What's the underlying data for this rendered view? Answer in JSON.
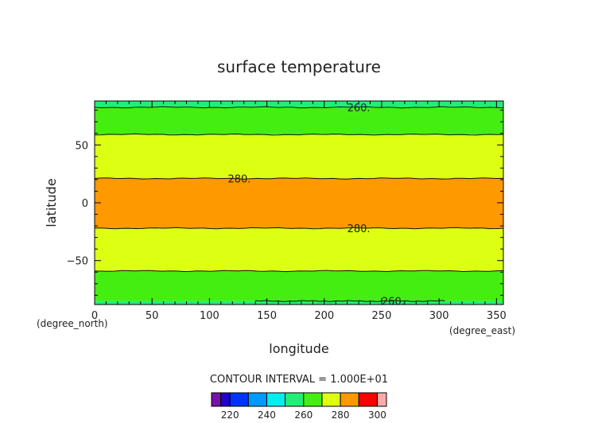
{
  "chart_data": {
    "type": "heatmap",
    "title": "surface temperature",
    "xlabel": "longitude",
    "ylabel": "latitude",
    "x_units": "(degree_east)",
    "y_units": "(degree_north)",
    "xlim": [
      0,
      356
    ],
    "ylim": [
      -88,
      88
    ],
    "x_ticks": [
      0,
      50,
      100,
      150,
      200,
      250,
      300,
      350
    ],
    "y_ticks": [
      -50,
      0,
      50
    ],
    "contour_interval_text": "CONTOUR INTERVAL = 1.000E+01",
    "bands": [
      {
        "ymin": -88,
        "ymax": -85,
        "level_low": 250,
        "level_high": 260,
        "color": "#22ee77"
      },
      {
        "ymin": -85,
        "ymax": -59,
        "level_low": 260,
        "level_high": 270,
        "color": "#44ee11"
      },
      {
        "ymin": -59,
        "ymax": -22,
        "level_low": 270,
        "level_high": 280,
        "color": "#ddff11"
      },
      {
        "ymin": -22,
        "ymax": 21,
        "level_low": 280,
        "level_high": 290,
        "color": "#ff9900"
      },
      {
        "ymin": 21,
        "ymax": 59,
        "level_low": 270,
        "level_high": 280,
        "color": "#ddff11"
      },
      {
        "ymin": 59,
        "ymax": 82,
        "level_low": 260,
        "level_high": 270,
        "color": "#44ee11"
      },
      {
        "ymin": 82,
        "ymax": 88,
        "level_low": 250,
        "level_high": 260,
        "color": "#22ee77"
      }
    ],
    "contours": [
      {
        "level": 260,
        "y": 82.5
      },
      {
        "level": 270,
        "y": 59
      },
      {
        "level": 280,
        "y": 21
      },
      {
        "level": 280,
        "y": -22
      },
      {
        "level": 270,
        "y": -59
      },
      {
        "level": 260,
        "y": -85,
        "x_start": 140,
        "x_end": 305
      }
    ],
    "contour_labels": [
      {
        "text": "260.",
        "x": 230,
        "y": 82.5
      },
      {
        "text": "280.",
        "x": 126,
        "y": 21
      },
      {
        "text": "280.",
        "x": 230,
        "y": -22
      },
      {
        "text": "260.",
        "x": 260,
        "y": -85
      }
    ],
    "colorbar": {
      "colors": [
        "#7711aa",
        "#2200cc",
        "#0033ff",
        "#0099ff",
        "#00eeee",
        "#22ee77",
        "#44ee11",
        "#ddff11",
        "#ff9900",
        "#ff0000",
        "#ffaaaa"
      ],
      "boundaries": [
        210,
        215,
        220,
        230,
        240,
        250,
        260,
        270,
        280,
        290,
        300,
        305
      ],
      "labels": [
        220,
        240,
        260,
        280,
        300
      ]
    }
  }
}
